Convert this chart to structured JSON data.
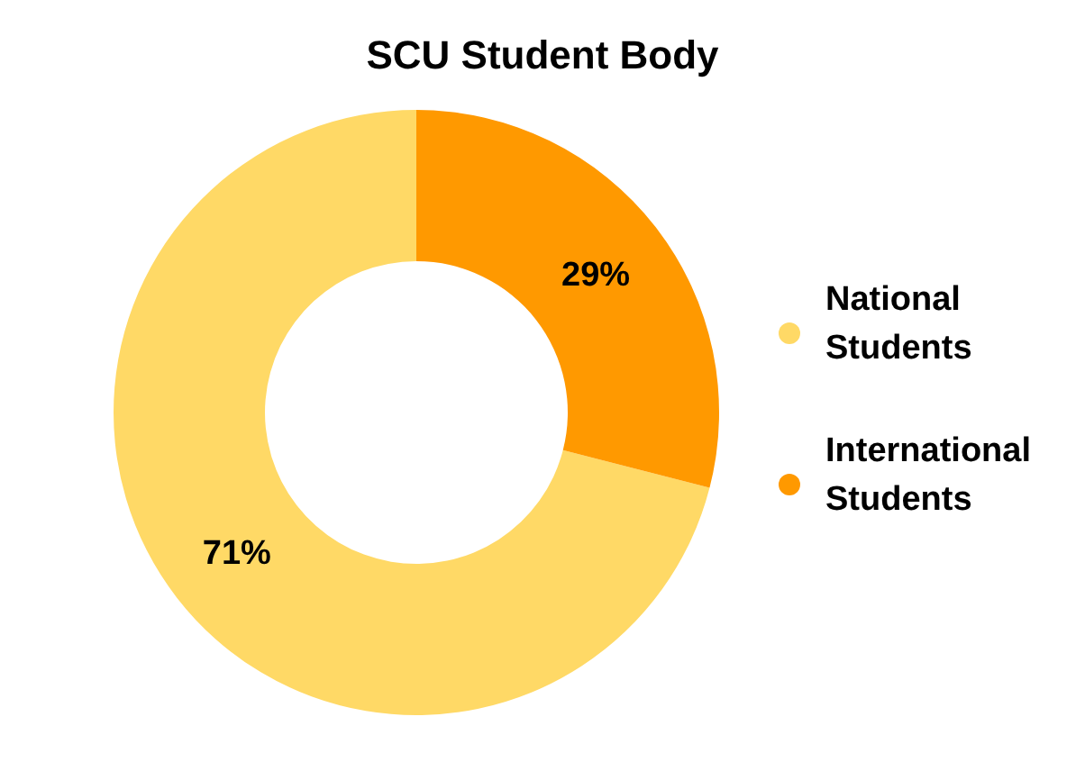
{
  "chart_data": {
    "type": "donut",
    "title": "SCU Student Body",
    "categories": [
      "National Students",
      "International Students"
    ],
    "values": [
      71,
      29
    ],
    "colors": [
      "#ffd966",
      "#ff9900"
    ],
    "value_labels": [
      "71%",
      "29%"
    ],
    "legend": "right"
  }
}
